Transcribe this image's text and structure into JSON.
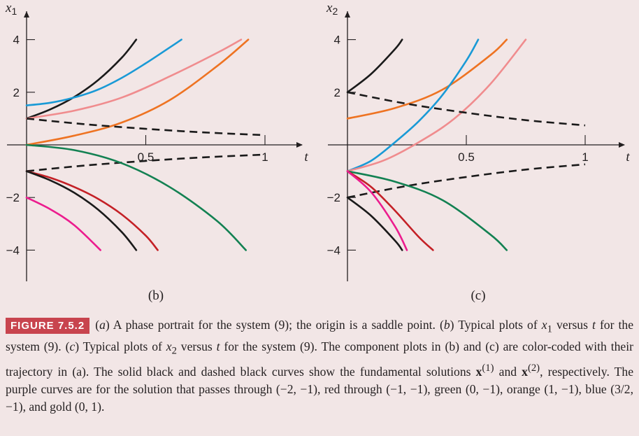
{
  "chart_data": [
    {
      "type": "line",
      "panel_label": "(b)",
      "xlabel": "t",
      "ylabel": "x",
      "ylabel_sub": "1",
      "xlim": [
        0,
        1.15
      ],
      "ylim": [
        -5,
        5
      ],
      "xticks": [
        0.5,
        1
      ],
      "xtick_labels": [
        "0.5",
        "1"
      ],
      "yticks": [
        4,
        2,
        -2,
        -4
      ],
      "ytick_labels": [
        "4",
        "2",
        "−2",
        "−4"
      ],
      "series": [
        {
          "color": "#1a1a1a",
          "style": "solid",
          "x": [
            0,
            0.1,
            0.2,
            0.3,
            0.4,
            0.46
          ],
          "y": [
            1.0,
            1.35,
            1.82,
            2.46,
            3.32,
            4.0
          ]
        },
        {
          "color": "#1a9ad6",
          "style": "solid",
          "x": [
            0,
            0.1,
            0.2,
            0.3,
            0.4,
            0.5,
            0.6,
            0.65
          ],
          "y": [
            1.5,
            1.6,
            1.8,
            2.1,
            2.55,
            3.1,
            3.7,
            4.0
          ]
        },
        {
          "color": "#f08c8e",
          "style": "solid",
          "x": [
            0,
            0.2,
            0.4,
            0.6,
            0.8,
            0.9
          ],
          "y": [
            1.0,
            1.3,
            1.8,
            2.6,
            3.5,
            4.0
          ]
        },
        {
          "color": "#ee7322",
          "style": "solid",
          "x": [
            0,
            0.2,
            0.4,
            0.6,
            0.8,
            0.93
          ],
          "y": [
            0,
            0.35,
            0.85,
            1.7,
            3.0,
            4.0
          ]
        },
        {
          "color": "#1a1a1a",
          "style": "dashed",
          "x": [
            0,
            0.25,
            0.5,
            0.75,
            1.0
          ],
          "y": [
            1.0,
            0.78,
            0.61,
            0.47,
            0.37
          ]
        },
        {
          "color": "#1a1a1a",
          "style": "dashed",
          "x": [
            0,
            0.25,
            0.5,
            0.75,
            1.0
          ],
          "y": [
            -1.0,
            -0.78,
            -0.61,
            -0.47,
            -0.37
          ]
        },
        {
          "color": "#138152",
          "style": "solid",
          "x": [
            0,
            0.2,
            0.4,
            0.6,
            0.8,
            0.92
          ],
          "y": [
            0,
            -0.2,
            -0.7,
            -1.6,
            -2.9,
            -4.0
          ]
        },
        {
          "color": "#c42026",
          "style": "solid",
          "x": [
            0,
            0.1,
            0.2,
            0.3,
            0.4,
            0.5,
            0.55
          ],
          "y": [
            -1.0,
            -1.25,
            -1.6,
            -2.05,
            -2.65,
            -3.45,
            -4.0
          ]
        },
        {
          "color": "#1a1a1a",
          "style": "solid",
          "x": [
            0,
            0.1,
            0.2,
            0.3,
            0.4,
            0.46
          ],
          "y": [
            -1.0,
            -1.35,
            -1.82,
            -2.46,
            -3.32,
            -4.0
          ]
        },
        {
          "color": "#ec1c8e",
          "style": "solid",
          "x": [
            0,
            0.1,
            0.2,
            0.31
          ],
          "y": [
            -2.0,
            -2.45,
            -3.05,
            -4.0
          ]
        }
      ]
    },
    {
      "type": "line",
      "panel_label": "(c)",
      "xlabel": "t",
      "ylabel": "x",
      "ylabel_sub": "2",
      "xlim": [
        0,
        1.15
      ],
      "ylim": [
        -5,
        5
      ],
      "xticks": [
        0.5,
        1
      ],
      "xtick_labels": [
        "0.5",
        "1"
      ],
      "yticks": [
        4,
        2,
        -2,
        -4
      ],
      "ytick_labels": [
        "4",
        "2",
        "−2",
        "−4"
      ],
      "series": [
        {
          "color": "#1a1a1a",
          "style": "solid",
          "x": [
            0,
            0.1,
            0.2,
            0.23
          ],
          "y": [
            2.0,
            2.7,
            3.64,
            4.0
          ]
        },
        {
          "color": "#ee7322",
          "style": "solid",
          "x": [
            0,
            0.2,
            0.4,
            0.6,
            0.67
          ],
          "y": [
            1.0,
            1.4,
            2.1,
            3.4,
            4.0
          ]
        },
        {
          "color": "#1a9ad6",
          "style": "solid",
          "x": [
            0,
            0.1,
            0.2,
            0.3,
            0.4,
            0.5,
            0.55
          ],
          "y": [
            -1.0,
            -0.6,
            0.1,
            0.9,
            1.9,
            3.2,
            4.0
          ]
        },
        {
          "color": "#f08c8e",
          "style": "solid",
          "x": [
            0,
            0.15,
            0.3,
            0.45,
            0.6,
            0.75
          ],
          "y": [
            -1.0,
            -0.6,
            0.1,
            1.0,
            2.3,
            4.0
          ]
        },
        {
          "color": "#1a1a1a",
          "style": "dashed",
          "x": [
            0,
            0.25,
            0.5,
            0.75,
            1.0
          ],
          "y": [
            2.0,
            1.56,
            1.22,
            0.94,
            0.74
          ]
        },
        {
          "color": "#1a1a1a",
          "style": "dashed",
          "x": [
            0,
            0.25,
            0.5,
            0.75,
            1.0
          ],
          "y": [
            -2.0,
            -1.56,
            -1.22,
            -0.94,
            -0.74
          ]
        },
        {
          "color": "#138152",
          "style": "solid",
          "x": [
            0,
            0.2,
            0.4,
            0.6,
            0.67
          ],
          "y": [
            -1.0,
            -1.4,
            -2.1,
            -3.4,
            -4.0
          ]
        },
        {
          "color": "#c42026",
          "style": "solid",
          "x": [
            0,
            0.1,
            0.2,
            0.3,
            0.36
          ],
          "y": [
            -1.0,
            -1.6,
            -2.5,
            -3.5,
            -4.0
          ]
        },
        {
          "color": "#ec1c8e",
          "style": "solid",
          "x": [
            0,
            0.1,
            0.2,
            0.25
          ],
          "y": [
            -1.0,
            -1.8,
            -3.1,
            -4.0
          ]
        },
        {
          "color": "#1a1a1a",
          "style": "solid",
          "x": [
            0,
            0.1,
            0.2,
            0.23
          ],
          "y": [
            -2.0,
            -2.7,
            -3.64,
            -4.0
          ]
        }
      ]
    }
  ],
  "caption": {
    "figure_label": "FIGURE 7.5.2"
  }
}
